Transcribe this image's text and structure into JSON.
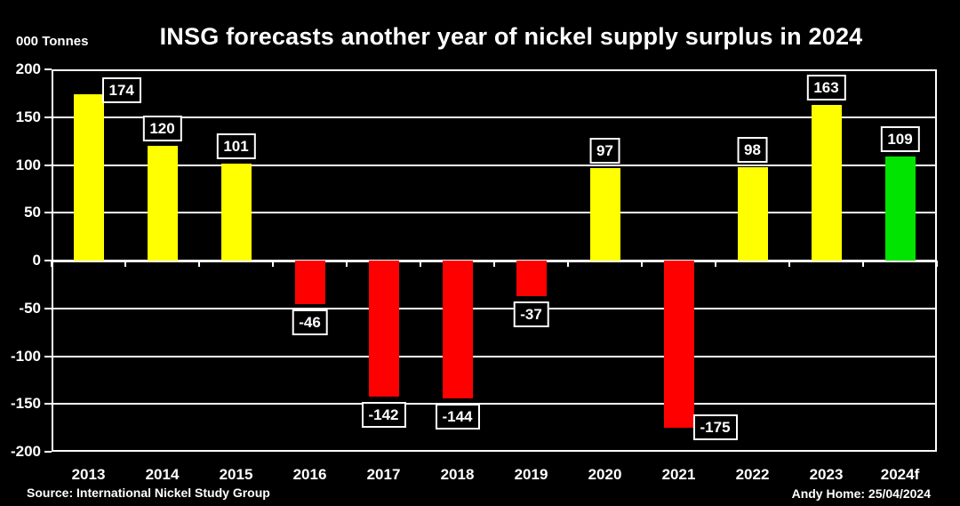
{
  "footer": {
    "source": "Source: International Nickel Study Group",
    "credit": "Andy Home: 25/04/2024"
  },
  "colors": {
    "background": "#000000",
    "axis": "#FFFFFF",
    "text": "#FFFFFF",
    "surplus_bar": "#FFFF00",
    "deficit_bar": "#FF0000",
    "forecast_bar": "#00E400"
  },
  "chart_data": {
    "type": "bar",
    "title": "INSG forecasts another year of nickel supply surplus in 2024",
    "ylabel": "000 Tonnes",
    "xlabel": "",
    "categories": [
      "2013",
      "2014",
      "2015",
      "2016",
      "2017",
      "2018",
      "2019",
      "2020",
      "2021",
      "2022",
      "2023",
      "2024f"
    ],
    "values": [
      174,
      120,
      101,
      -46,
      -142,
      -144,
      -37,
      97,
      -175,
      98,
      163,
      109
    ],
    "bar_colors": [
      "#FFFF00",
      "#FFFF00",
      "#FFFF00",
      "#FF0000",
      "#FF0000",
      "#FF0000",
      "#FF0000",
      "#FFFF00",
      "#FF0000",
      "#FFFF00",
      "#FFFF00",
      "#00E400"
    ],
    "data_labels": [
      "174",
      "120",
      "101",
      "-46",
      "-142",
      "-144",
      "-37",
      "97",
      "-175",
      "98",
      "163",
      "109"
    ],
    "label_placements": [
      "top-right",
      "above",
      "above",
      "below",
      "below",
      "below",
      "below",
      "above",
      "bottom-right",
      "above",
      "above",
      "above"
    ],
    "ylim": [
      -200,
      200
    ],
    "ytick_step": 50,
    "ytick_labels": [
      "200",
      "150",
      "100",
      "50",
      "0",
      "-50",
      "-100",
      "-150",
      "-200"
    ],
    "grid": true,
    "legend": "none"
  }
}
